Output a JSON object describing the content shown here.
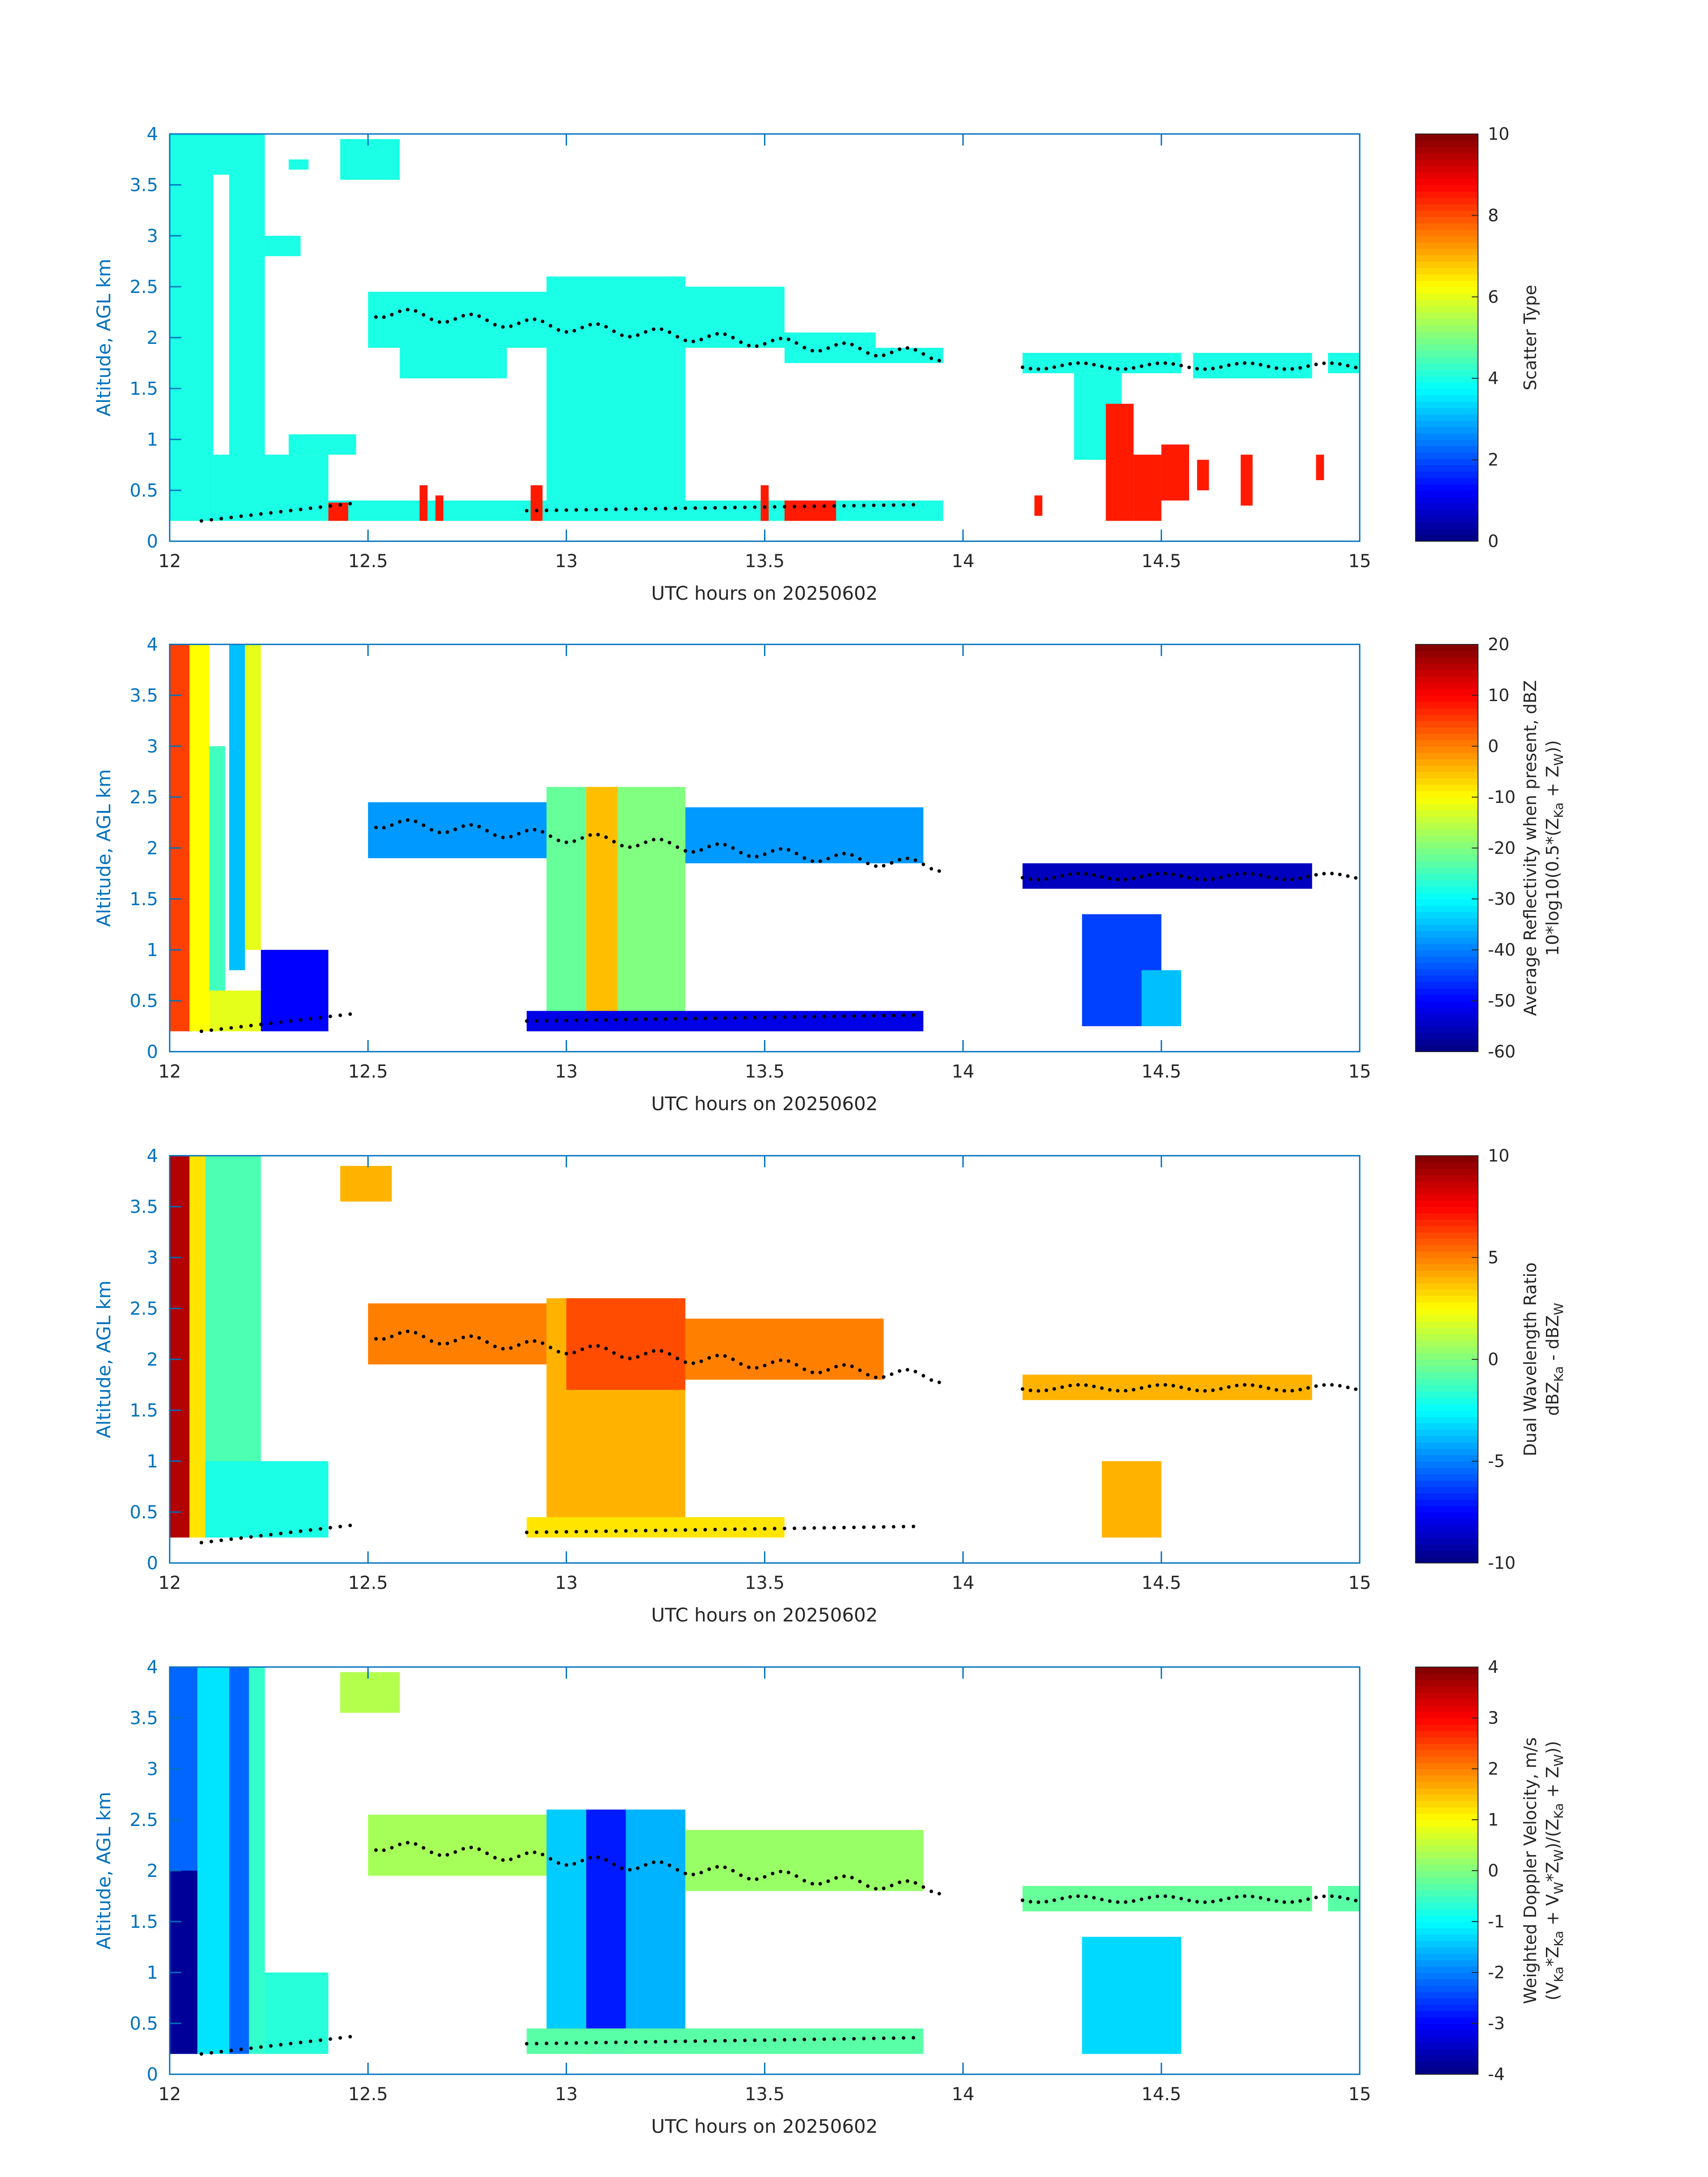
{
  "figure": {
    "common": {
      "xlabel": "UTC hours on 20250602",
      "ylabel": "Altitude, AGL km",
      "xlim": [
        12,
        15
      ],
      "ylim": [
        0,
        4
      ],
      "xticks": [
        "12",
        "12.5",
        "13",
        "13.5",
        "14",
        "14.5",
        "15"
      ],
      "yticks": [
        "0",
        "0.5",
        "1",
        "1.5",
        "2",
        "2.5",
        "3",
        "3.5",
        "4"
      ],
      "colormap": "jet",
      "axis_color": "#0072BD"
    }
  },
  "chart_data": [
    {
      "type": "heatmap",
      "panel": 1,
      "xlabel": "UTC hours on 20250602",
      "ylabel": "Altitude, AGL km",
      "xlim": [
        12,
        15
      ],
      "ylim": [
        0,
        4
      ],
      "colorbar": {
        "label": "Scatter Type",
        "clim": [
          0,
          10
        ],
        "ticks": [
          "0",
          "2",
          "4",
          "6",
          "8",
          "10"
        ]
      },
      "regions": [
        {
          "x0": 12.0,
          "x1": 12.11,
          "y0": 0.2,
          "y1": 4.0,
          "v": 4
        },
        {
          "x0": 12.11,
          "x1": 12.4,
          "y0": 0.2,
          "y1": 0.85,
          "v": 4
        },
        {
          "x0": 12.15,
          "x1": 12.24,
          "y0": 0.8,
          "y1": 4.0,
          "v": 4
        },
        {
          "x0": 12.08,
          "x1": 12.16,
          "y0": 3.6,
          "y1": 4.0,
          "v": 4
        },
        {
          "x0": 12.24,
          "x1": 12.33,
          "y0": 2.8,
          "y1": 3.0,
          "v": 4
        },
        {
          "x0": 12.3,
          "x1": 12.47,
          "y0": 0.85,
          "y1": 1.05,
          "v": 4
        },
        {
          "x0": 12.3,
          "x1": 12.35,
          "y0": 3.65,
          "y1": 3.75,
          "v": 4
        },
        {
          "x0": 12.43,
          "x1": 12.58,
          "y0": 3.55,
          "y1": 3.95,
          "v": 4
        },
        {
          "x0": 12.4,
          "x1": 13.95,
          "y0": 0.2,
          "y1": 0.4,
          "v": 4
        },
        {
          "x0": 12.5,
          "x1": 13.0,
          "y0": 1.9,
          "y1": 2.45,
          "v": 4
        },
        {
          "x0": 12.95,
          "x1": 13.3,
          "y0": 0.35,
          "y1": 2.6,
          "v": 4
        },
        {
          "x0": 12.58,
          "x1": 12.85,
          "y0": 1.6,
          "y1": 2.0,
          "v": 4
        },
        {
          "x0": 13.0,
          "x1": 13.55,
          "y0": 1.9,
          "y1": 2.5,
          "v": 4
        },
        {
          "x0": 13.55,
          "x1": 13.78,
          "y0": 1.75,
          "y1": 2.05,
          "v": 4
        },
        {
          "x0": 13.78,
          "x1": 13.95,
          "y0": 1.75,
          "y1": 1.9,
          "v": 4
        },
        {
          "x0": 14.15,
          "x1": 14.55,
          "y0": 1.65,
          "y1": 1.85,
          "v": 4
        },
        {
          "x0": 14.58,
          "x1": 14.88,
          "y0": 1.6,
          "y1": 1.85,
          "v": 4
        },
        {
          "x0": 14.28,
          "x1": 14.4,
          "y0": 0.8,
          "y1": 1.65,
          "v": 4
        },
        {
          "x0": 14.92,
          "x1": 15.0,
          "y0": 1.65,
          "y1": 1.85,
          "v": 4
        },
        {
          "x0": 12.4,
          "x1": 12.45,
          "y0": 0.2,
          "y1": 0.38,
          "v": 8.5
        },
        {
          "x0": 12.63,
          "x1": 12.65,
          "y0": 0.2,
          "y1": 0.55,
          "v": 8.5
        },
        {
          "x0": 12.67,
          "x1": 12.69,
          "y0": 0.2,
          "y1": 0.45,
          "v": 8.5
        },
        {
          "x0": 12.91,
          "x1": 12.94,
          "y0": 0.2,
          "y1": 0.55,
          "v": 8.5
        },
        {
          "x0": 13.49,
          "x1": 13.51,
          "y0": 0.2,
          "y1": 0.55,
          "v": 8.5
        },
        {
          "x0": 13.55,
          "x1": 13.68,
          "y0": 0.2,
          "y1": 0.4,
          "v": 8.5
        },
        {
          "x0": 14.36,
          "x1": 14.43,
          "y0": 0.2,
          "y1": 1.35,
          "v": 8.5
        },
        {
          "x0": 14.43,
          "x1": 14.5,
          "y0": 0.2,
          "y1": 0.85,
          "v": 8.5
        },
        {
          "x0": 14.5,
          "x1": 14.57,
          "y0": 0.4,
          "y1": 0.95,
          "v": 8.5
        },
        {
          "x0": 14.59,
          "x1": 14.62,
          "y0": 0.5,
          "y1": 0.8,
          "v": 8.5
        },
        {
          "x0": 14.7,
          "x1": 14.73,
          "y0": 0.35,
          "y1": 0.85,
          "v": 8.5
        },
        {
          "x0": 14.89,
          "x1": 14.91,
          "y0": 0.6,
          "y1": 0.85,
          "v": 8.5
        },
        {
          "x0": 14.18,
          "x1": 14.2,
          "y0": 0.25,
          "y1": 0.45,
          "v": 8.5
        }
      ]
    },
    {
      "type": "heatmap",
      "panel": 2,
      "xlabel": "UTC hours on 20250602",
      "ylabel": "Altitude, AGL km",
      "xlim": [
        12,
        15
      ],
      "ylim": [
        0,
        4
      ],
      "colorbar": {
        "label_line1": "Average Reflectivity when present, dBZ",
        "label_line2": "10*log10(0.5*(Z",
        "label_sub_ka": "Ka",
        "label_mid": " + Z",
        "label_sub_w": "W",
        "label_end": "))",
        "clim": [
          -60,
          20
        ],
        "ticks": [
          "-60",
          "-50",
          "-40",
          "-30",
          "-20",
          "-10",
          "0",
          "10",
          "20"
        ]
      },
      "regions": [
        {
          "x0": 12.0,
          "x1": 12.05,
          "y0": 0.2,
          "y1": 4.0,
          "v": 5
        },
        {
          "x0": 12.05,
          "x1": 12.1,
          "y0": 0.2,
          "y1": 4.0,
          "v": -10
        },
        {
          "x0": 12.1,
          "x1": 12.14,
          "y0": 0.2,
          "y1": 3.0,
          "v": -25
        },
        {
          "x0": 12.1,
          "x1": 12.3,
          "y0": 0.2,
          "y1": 0.6,
          "v": -12
        },
        {
          "x0": 12.15,
          "x1": 12.19,
          "y0": 0.8,
          "y1": 4.0,
          "v": -35
        },
        {
          "x0": 12.19,
          "x1": 12.23,
          "y0": 1.0,
          "y1": 4.0,
          "v": -12
        },
        {
          "x0": 12.23,
          "x1": 12.4,
          "y0": 0.2,
          "y1": 1.0,
          "v": -50
        },
        {
          "x0": 12.5,
          "x1": 13.0,
          "y0": 1.9,
          "y1": 2.45,
          "v": -38
        },
        {
          "x0": 12.95,
          "x1": 13.05,
          "y0": 0.3,
          "y1": 2.6,
          "v": -22
        },
        {
          "x0": 13.05,
          "x1": 13.13,
          "y0": 0.2,
          "y1": 2.6,
          "v": -5
        },
        {
          "x0": 13.13,
          "x1": 13.3,
          "y0": 0.3,
          "y1": 2.6,
          "v": -20
        },
        {
          "x0": 13.3,
          "x1": 13.9,
          "y0": 1.85,
          "y1": 2.4,
          "v": -38
        },
        {
          "x0": 12.9,
          "x1": 13.9,
          "y0": 0.2,
          "y1": 0.4,
          "v": -52
        },
        {
          "x0": 14.15,
          "x1": 14.88,
          "y0": 1.6,
          "y1": 1.85,
          "v": -55
        },
        {
          "x0": 14.3,
          "x1": 14.5,
          "y0": 0.25,
          "y1": 1.35,
          "v": -45
        },
        {
          "x0": 14.45,
          "x1": 14.55,
          "y0": 0.25,
          "y1": 0.8,
          "v": -35
        }
      ]
    },
    {
      "type": "heatmap",
      "panel": 3,
      "xlabel": "UTC hours on 20250602",
      "ylabel": "Altitude, AGL km",
      "xlim": [
        12,
        15
      ],
      "ylim": [
        0,
        4
      ],
      "colorbar": {
        "label_line1": "Dual Wavelength Ratio",
        "label_line2": "dBZ",
        "label_sub_ka": "Ka",
        "label_mid": " - dBZ",
        "label_sub_w": "W",
        "clim": [
          -10,
          10
        ],
        "ticks": [
          "-10",
          "-5",
          "0",
          "5",
          "10"
        ]
      },
      "regions": [
        {
          "x0": 12.0,
          "x1": 12.05,
          "y0": 0.25,
          "y1": 4.0,
          "v": 9
        },
        {
          "x0": 12.05,
          "x1": 12.09,
          "y0": 0.25,
          "y1": 4.0,
          "v": 3
        },
        {
          "x0": 12.09,
          "x1": 12.23,
          "y0": 0.25,
          "y1": 4.0,
          "v": -1
        },
        {
          "x0": 12.09,
          "x1": 12.4,
          "y0": 0.25,
          "y1": 1.0,
          "v": -2
        },
        {
          "x0": 12.43,
          "x1": 12.56,
          "y0": 3.55,
          "y1": 3.9,
          "v": 4
        },
        {
          "x0": 12.5,
          "x1": 13.0,
          "y0": 1.95,
          "y1": 2.55,
          "v": 5
        },
        {
          "x0": 12.95,
          "x1": 13.3,
          "y0": 0.3,
          "y1": 2.6,
          "v": 4
        },
        {
          "x0": 13.3,
          "x1": 13.8,
          "y0": 1.8,
          "y1": 2.4,
          "v": 5
        },
        {
          "x0": 13.0,
          "x1": 13.3,
          "y0": 1.7,
          "y1": 2.6,
          "v": 6
        },
        {
          "x0": 14.15,
          "x1": 14.88,
          "y0": 1.6,
          "y1": 1.85,
          "v": 4
        },
        {
          "x0": 14.35,
          "x1": 14.5,
          "y0": 0.25,
          "y1": 1.0,
          "v": 4
        },
        {
          "x0": 12.9,
          "x1": 13.55,
          "y0": 0.25,
          "y1": 0.45,
          "v": 3
        }
      ]
    },
    {
      "type": "heatmap",
      "panel": 4,
      "xlabel": "UTC hours on 20250602",
      "ylabel": "Altitude, AGL km",
      "xlim": [
        12,
        15
      ],
      "ylim": [
        0,
        4
      ],
      "colorbar": {
        "label_line1": "Weighted Doppler Velocity, m/s",
        "label_line2": "(V",
        "label_rest": "*Z",
        "clim": [
          -4,
          4
        ],
        "ticks": [
          "-4",
          "-3",
          "-2",
          "-1",
          "0",
          "1",
          "2",
          "3",
          "4"
        ]
      },
      "regions": [
        {
          "x0": 12.0,
          "x1": 12.07,
          "y0": 0.2,
          "y1": 2.0,
          "v": -3.8
        },
        {
          "x0": 12.0,
          "x1": 12.07,
          "y0": 2.0,
          "y1": 4.0,
          "v": -2.2
        },
        {
          "x0": 12.07,
          "x1": 12.15,
          "y0": 0.2,
          "y1": 4.0,
          "v": -1.2
        },
        {
          "x0": 12.15,
          "x1": 12.2,
          "y0": 0.2,
          "y1": 4.0,
          "v": -2.2
        },
        {
          "x0": 12.2,
          "x1": 12.24,
          "y0": 0.2,
          "y1": 4.0,
          "v": -0.6
        },
        {
          "x0": 12.24,
          "x1": 12.4,
          "y0": 0.2,
          "y1": 1.0,
          "v": -0.7
        },
        {
          "x0": 12.43,
          "x1": 12.58,
          "y0": 3.55,
          "y1": 3.95,
          "v": 0.4
        },
        {
          "x0": 12.5,
          "x1": 13.0,
          "y0": 1.95,
          "y1": 2.55,
          "v": 0.3
        },
        {
          "x0": 12.95,
          "x1": 13.05,
          "y0": 0.3,
          "y1": 2.6,
          "v": -1.4
        },
        {
          "x0": 13.05,
          "x1": 13.15,
          "y0": 0.2,
          "y1": 2.6,
          "v": -2.8
        },
        {
          "x0": 13.15,
          "x1": 13.3,
          "y0": 0.3,
          "y1": 2.6,
          "v": -1.6
        },
        {
          "x0": 13.3,
          "x1": 13.9,
          "y0": 1.8,
          "y1": 2.4,
          "v": 0.2
        },
        {
          "x0": 12.9,
          "x1": 13.9,
          "y0": 0.2,
          "y1": 0.45,
          "v": -0.3
        },
        {
          "x0": 14.15,
          "x1": 14.88,
          "y0": 1.6,
          "y1": 1.85,
          "v": -0.2
        },
        {
          "x0": 14.3,
          "x1": 14.55,
          "y0": 0.2,
          "y1": 1.35,
          "v": -1.3
        },
        {
          "x0": 14.92,
          "x1": 15.0,
          "y0": 1.6,
          "y1": 1.85,
          "v": -0.3
        }
      ]
    }
  ]
}
